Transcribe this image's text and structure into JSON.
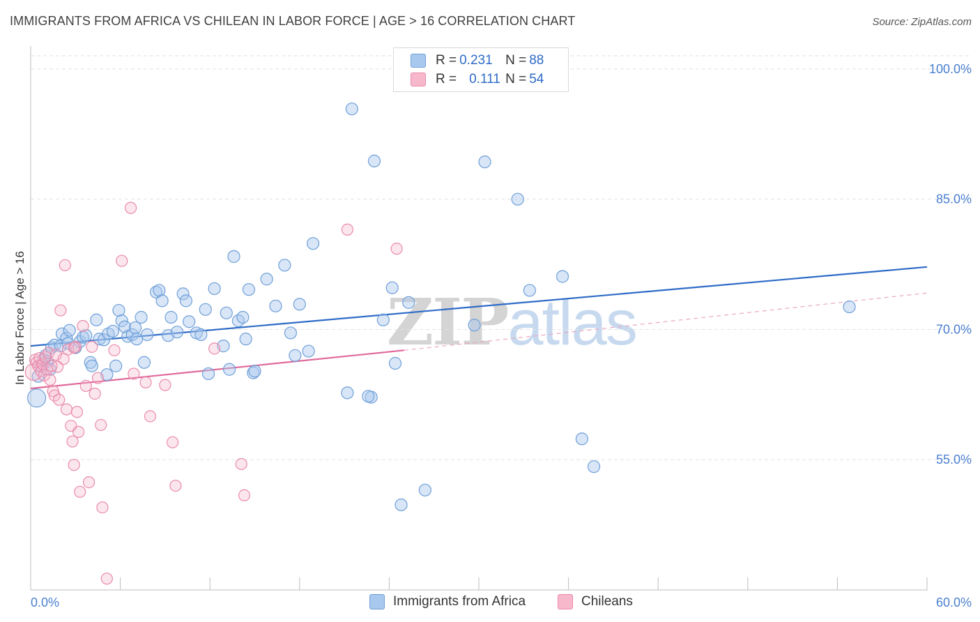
{
  "title": "IMMIGRANTS FROM AFRICA VS CHILEAN IN LABOR FORCE | AGE > 16 CORRELATION CHART",
  "source": "Source: ZipAtlas.com",
  "legend": {
    "africa": {
      "r_label": "R = ",
      "r_value": "0.231",
      "n_label": "N = ",
      "n_value": "88"
    },
    "chilean": {
      "r_label": "R = ",
      "r_value": "0.111",
      "n_label": "N = ",
      "n_value": "54"
    }
  },
  "bottom_legend": {
    "africa": "Immigrants from Africa",
    "chilean": "Chileans"
  },
  "watermark": {
    "zip": "ZIP",
    "atlas": "atlas"
  },
  "colors": {
    "africa_fill": "#a9c8ee",
    "africa_stroke": "#6f9fd8",
    "africa_line": "#2e6bc7",
    "chilean_fill": "#f7b8cc",
    "chilean_stroke": "#e98aaa",
    "chilean_line": "#e0689a"
  },
  "chart_data": {
    "type": "scatter",
    "ylabel": "In Labor Force | Age > 16",
    "xlim": [
      0,
      60
    ],
    "ylim": [
      40,
      102
    ],
    "x_tick_labels": [
      "0.0%",
      "60.0%"
    ],
    "y_ticks": [
      55,
      70,
      85,
      100
    ],
    "y_tick_labels": [
      "55.0%",
      "70.0%",
      "85.0%",
      "100.0%"
    ],
    "grid": true,
    "series": [
      {
        "name": "Immigrants from Africa",
        "trend": {
          "x": [
            0,
            60
          ],
          "y": [
            68.1,
            77.2
          ],
          "style": "solid"
        },
        "points": [
          [
            0.4,
            62.1
          ],
          [
            0.5,
            64.6
          ],
          [
            0.7,
            65.8
          ],
          [
            0.9,
            66.5
          ],
          [
            1.0,
            67.0
          ],
          [
            1.1,
            66.3
          ],
          [
            1.3,
            65.4
          ],
          [
            1.4,
            67.9
          ],
          [
            1.6,
            68.2
          ],
          [
            2.0,
            68.1
          ],
          [
            2.1,
            69.5
          ],
          [
            2.4,
            69.0
          ],
          [
            2.5,
            68.4
          ],
          [
            2.6,
            69.9
          ],
          [
            3.0,
            67.9
          ],
          [
            3.3,
            68.6
          ],
          [
            3.5,
            69.1
          ],
          [
            3.7,
            69.3
          ],
          [
            4.0,
            66.2
          ],
          [
            4.1,
            65.8
          ],
          [
            4.4,
            71.1
          ],
          [
            4.6,
            68.9
          ],
          [
            4.9,
            68.8
          ],
          [
            5.1,
            64.8
          ],
          [
            5.2,
            69.5
          ],
          [
            5.5,
            69.8
          ],
          [
            5.7,
            65.8
          ],
          [
            5.9,
            72.2
          ],
          [
            6.1,
            71.0
          ],
          [
            6.3,
            70.3
          ],
          [
            6.5,
            69.2
          ],
          [
            6.8,
            69.4
          ],
          [
            7.0,
            70.2
          ],
          [
            7.1,
            68.9
          ],
          [
            7.4,
            71.4
          ],
          [
            7.6,
            66.2
          ],
          [
            7.8,
            69.4
          ],
          [
            8.4,
            74.3
          ],
          [
            8.6,
            74.5
          ],
          [
            8.8,
            73.3
          ],
          [
            9.2,
            69.3
          ],
          [
            9.4,
            71.4
          ],
          [
            9.8,
            69.7
          ],
          [
            10.2,
            74.1
          ],
          [
            10.4,
            73.3
          ],
          [
            10.6,
            70.9
          ],
          [
            11.1,
            69.6
          ],
          [
            11.4,
            69.4
          ],
          [
            11.7,
            72.3
          ],
          [
            11.9,
            64.9
          ],
          [
            12.3,
            74.7
          ],
          [
            12.9,
            68.1
          ],
          [
            13.1,
            71.9
          ],
          [
            13.3,
            65.4
          ],
          [
            13.6,
            78.4
          ],
          [
            13.9,
            71.0
          ],
          [
            14.2,
            71.4
          ],
          [
            14.4,
            68.9
          ],
          [
            14.6,
            74.6
          ],
          [
            14.9,
            65.0
          ],
          [
            15.0,
            65.2
          ],
          [
            15.8,
            75.8
          ],
          [
            17.0,
            77.4
          ],
          [
            17.4,
            69.6
          ],
          [
            17.7,
            67.0
          ],
          [
            18.0,
            72.9
          ],
          [
            18.6,
            67.5
          ],
          [
            18.9,
            79.9
          ],
          [
            21.2,
            62.7
          ],
          [
            21.5,
            95.4
          ],
          [
            22.8,
            62.2
          ],
          [
            23.0,
            89.4
          ],
          [
            23.6,
            71.1
          ],
          [
            24.2,
            74.8
          ],
          [
            24.4,
            66.1
          ],
          [
            24.8,
            49.8
          ],
          [
            25.3,
            73.1
          ],
          [
            26.4,
            51.5
          ],
          [
            29.7,
            70.5
          ],
          [
            30.4,
            89.3
          ],
          [
            32.6,
            85.0
          ],
          [
            33.4,
            74.5
          ],
          [
            35.6,
            76.1
          ],
          [
            36.9,
            57.4
          ],
          [
            37.7,
            54.2
          ],
          [
            54.8,
            72.6
          ],
          [
            22.6,
            62.3
          ],
          [
            16.4,
            72.7
          ]
        ]
      },
      {
        "name": "Chileans",
        "trend": {
          "x": [
            0,
            25
          ],
          "y": [
            63.2,
            67.6
          ],
          "style": "solid",
          "extend_to": [
            60,
            74.2
          ]
        },
        "points": [
          [
            0.2,
            65.1
          ],
          [
            0.3,
            66.5
          ],
          [
            0.4,
            66.2
          ],
          [
            0.5,
            65.8
          ],
          [
            0.6,
            66.7
          ],
          [
            0.7,
            65.2
          ],
          [
            0.8,
            66.0
          ],
          [
            0.9,
            64.7
          ],
          [
            1.0,
            66.8
          ],
          [
            1.1,
            65.4
          ],
          [
            1.2,
            67.3
          ],
          [
            1.3,
            64.2
          ],
          [
            1.5,
            62.9
          ],
          [
            1.6,
            62.4
          ],
          [
            1.7,
            67.1
          ],
          [
            1.8,
            65.7
          ],
          [
            1.9,
            61.9
          ],
          [
            2.0,
            72.2
          ],
          [
            2.2,
            66.6
          ],
          [
            2.3,
            77.4
          ],
          [
            2.4,
            60.8
          ],
          [
            2.5,
            67.7
          ],
          [
            2.7,
            58.9
          ],
          [
            2.8,
            57.1
          ],
          [
            2.9,
            54.4
          ],
          [
            3.0,
            68.0
          ],
          [
            3.1,
            60.5
          ],
          [
            3.2,
            58.2
          ],
          [
            3.3,
            51.3
          ],
          [
            3.5,
            70.4
          ],
          [
            3.7,
            63.5
          ],
          [
            3.9,
            52.4
          ],
          [
            4.1,
            68.0
          ],
          [
            4.3,
            62.6
          ],
          [
            4.5,
            64.4
          ],
          [
            4.7,
            59.0
          ],
          [
            4.8,
            49.5
          ],
          [
            5.1,
            41.3
          ],
          [
            5.6,
            67.6
          ],
          [
            6.1,
            77.9
          ],
          [
            6.7,
            84.0
          ],
          [
            6.9,
            64.9
          ],
          [
            7.7,
            63.9
          ],
          [
            8.0,
            60.0
          ],
          [
            9.0,
            63.6
          ],
          [
            9.5,
            57.0
          ],
          [
            9.7,
            52.0
          ],
          [
            12.3,
            67.8
          ],
          [
            14.1,
            54.5
          ],
          [
            14.3,
            50.9
          ],
          [
            21.2,
            81.5
          ],
          [
            24.5,
            79.3
          ],
          [
            2.9,
            67.9
          ],
          [
            1.4,
            65.8
          ]
        ]
      }
    ]
  }
}
